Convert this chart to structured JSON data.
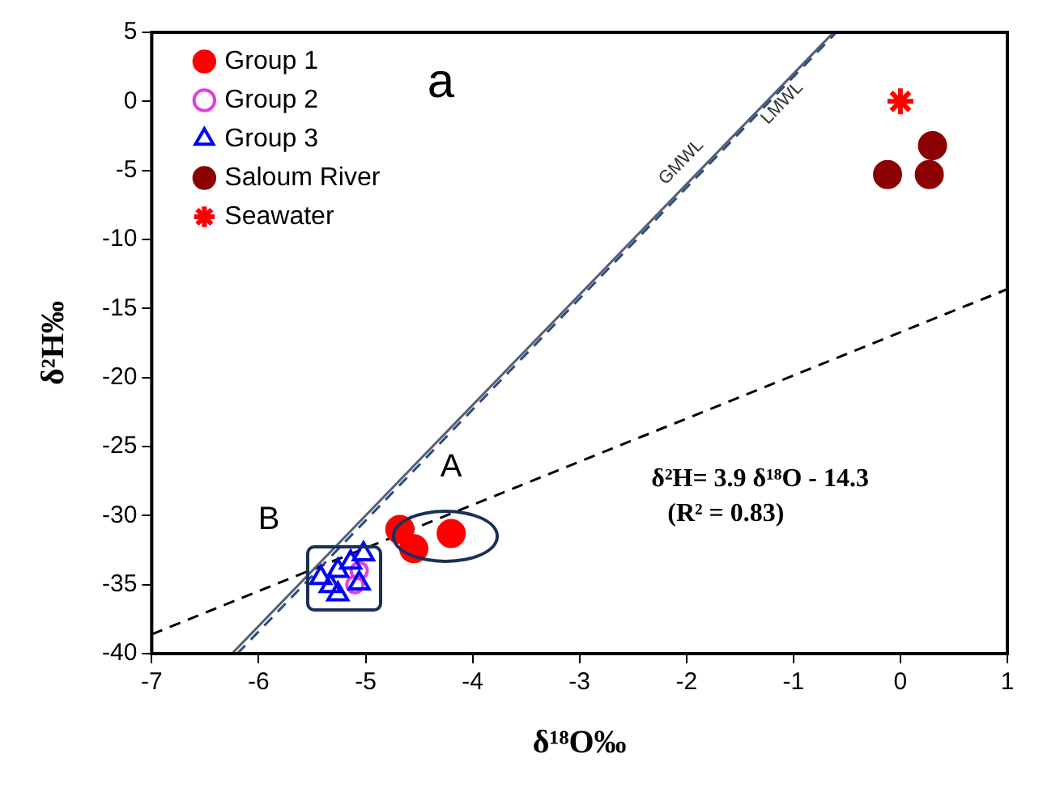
{
  "chart_data": {
    "type": "scatter",
    "xlabel": "δ¹⁸O‰",
    "ylabel": "δ²H‰",
    "xlim": [
      -7,
      1
    ],
    "xticks": [
      -7,
      -6,
      -5,
      -4,
      -3,
      -2,
      -1,
      0,
      1
    ],
    "ylim": [
      -40,
      5
    ],
    "yticks": [
      -40,
      -35,
      -30,
      -25,
      -20,
      -15,
      -10,
      -5,
      0,
      5
    ],
    "grid": false,
    "legend": "top left",
    "series": [
      {
        "name": "Group 1",
        "color": "#ff0000",
        "marker": "circle",
        "x": [
          -4.68,
          -4.55,
          -4.2
        ],
        "values": [
          -31.0,
          -32.4,
          -31.3
        ]
      },
      {
        "name": "Group 3",
        "color": "#0000ff",
        "marker": "triangle",
        "x": [
          -5.42,
          -5.26,
          -5.14,
          -5.02,
          -5.26,
          -5.33,
          -5.06
        ],
        "values": [
          -34.5,
          -34.0,
          -33.4,
          -32.8,
          -35.7,
          -35.1,
          -34.9
        ]
      },
      {
        "name": "Group 2",
        "color": "#e040e0",
        "marker": "circle",
        "x": [
          -5.06,
          -5.1
        ],
        "values": [
          -34.0,
          -35.0
        ]
      },
      {
        "name": "Saloum River",
        "color": "#8b0000",
        "marker": "circle",
        "x": [
          -0.12,
          0.27,
          0.3
        ],
        "values": [
          -5.3,
          -5.3,
          -3.2
        ]
      },
      {
        "name": "Seawater",
        "color": "#ff0000",
        "marker": "cross",
        "x": [
          0
        ],
        "values": [
          0
        ]
      },
      {
        "type": "line",
        "color": "#556070",
        "line_style": "solid",
        "x": [
          -6.25,
          -0.625
        ],
        "values": [
          -40,
          5
        ]
      },
      {
        "type": "line",
        "color": "#2a4a8a",
        "line_style": "dashed",
        "x": [
          -6.2,
          -0.6
        ],
        "values": [
          -40,
          5
        ]
      },
      {
        "type": "line",
        "color": "#000000",
        "line_style": "dashed",
        "x": [
          -7,
          1
        ],
        "values": [
          -38.6,
          -13.6
        ]
      }
    ],
    "annotations": [
      "A",
      "B",
      "GMWL",
      "LMWL",
      "a",
      "δ²H= 3.9 δ¹⁸O - 14.3",
      "(R² = 0.83)"
    ]
  }
}
